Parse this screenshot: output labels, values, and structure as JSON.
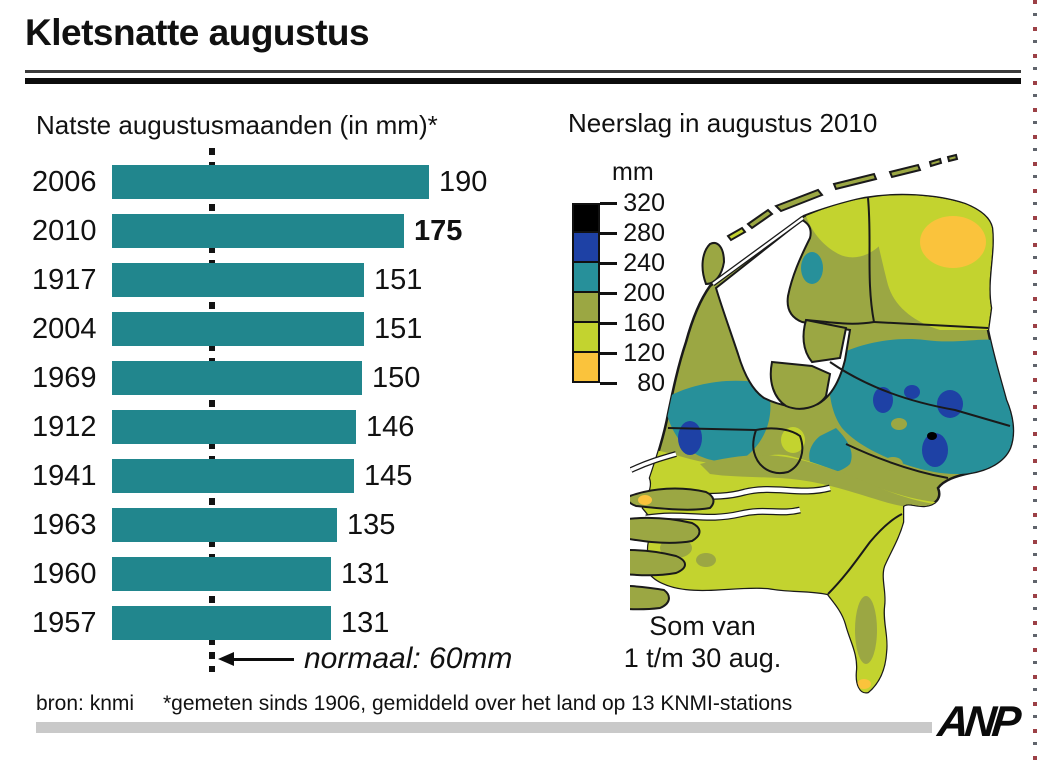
{
  "page": {
    "title": "Kletsnatte augustus",
    "footer": {
      "source": "bron: knmi",
      "note": "*gemeten sinds 1906, gemiddeld over het land op 13 KNMI-stations",
      "logo_text": "ANP"
    }
  },
  "chart_data": {
    "type": "bar",
    "orientation": "horizontal",
    "title": "Natste augustusmaanden (in mm)*",
    "categories": [
      "2006",
      "2010",
      "1917",
      "2004",
      "1969",
      "1912",
      "1941",
      "1963",
      "1960",
      "1957"
    ],
    "values": [
      190,
      175,
      151,
      151,
      150,
      146,
      145,
      135,
      131,
      131
    ],
    "highlight_category": "2010",
    "xlim": [
      0,
      200
    ],
    "reference_line": {
      "value": 60,
      "label": "normaal: 60mm"
    },
    "bar_color": "#21868d"
  },
  "map": {
    "title": "Neerslag in augustus 2010",
    "unit_label": "mm",
    "note_lines": {
      "line1": "Som van",
      "line2": "1 t/m 30 aug."
    },
    "legend_ticks": [
      320,
      280,
      240,
      200,
      160,
      120,
      80
    ],
    "legend_colors": [
      "#000000",
      "#1e41a5",
      "#27909a",
      "#9ba743",
      "#c3d32f",
      "#fac33c"
    ],
    "palette": {
      "black": "#000000",
      "blue": "#1e41a5",
      "teal": "#27909a",
      "olive": "#9ba743",
      "ygreen": "#c3d32f",
      "amber": "#fac33c",
      "water": "#ffffff",
      "border": "#1a1a1a"
    }
  }
}
